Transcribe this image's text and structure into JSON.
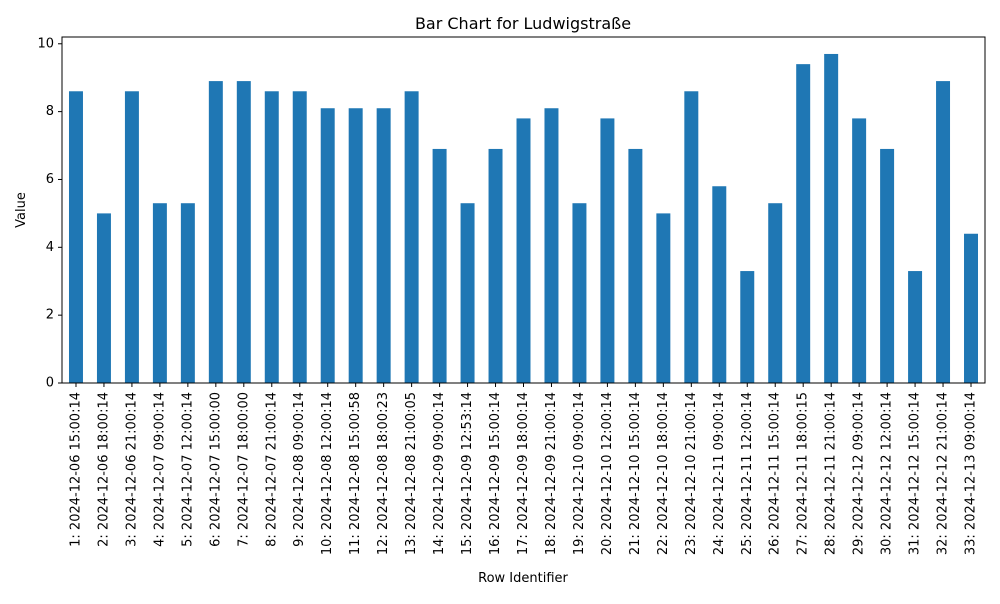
{
  "chart_data": {
    "type": "bar",
    "title": "Bar Chart for Ludwigstraße",
    "xlabel": "Row Identifier",
    "ylabel": "Value",
    "ylim": [
      0,
      10.2
    ],
    "yticks": [
      0,
      2,
      4,
      6,
      8,
      10
    ],
    "grid": false,
    "bar_color": "#1f77b4",
    "categories": [
      "1: 2024-12-06 15:00:14",
      "2: 2024-12-06 18:00:14",
      "3: 2024-12-06 21:00:14",
      "4: 2024-12-07 09:00:14",
      "5: 2024-12-07 12:00:14",
      "6: 2024-12-07 15:00:00",
      "7: 2024-12-07 18:00:00",
      "8: 2024-12-07 21:00:14",
      "9: 2024-12-08 09:00:14",
      "10: 2024-12-08 12:00:14",
      "11: 2024-12-08 15:00:58",
      "12: 2024-12-08 18:00:23",
      "13: 2024-12-08 21:00:05",
      "14: 2024-12-09 09:00:14",
      "15: 2024-12-09 12:53:14",
      "16: 2024-12-09 15:00:14",
      "17: 2024-12-09 18:00:14",
      "18: 2024-12-09 21:00:14",
      "19: 2024-12-10 09:00:14",
      "20: 2024-12-10 12:00:14",
      "21: 2024-12-10 15:00:14",
      "22: 2024-12-10 18:00:14",
      "23: 2024-12-10 21:00:14",
      "24: 2024-12-11 09:00:14",
      "25: 2024-12-11 12:00:14",
      "26: 2024-12-11 15:00:14",
      "27: 2024-12-11 18:00:15",
      "28: 2024-12-11 21:00:14",
      "29: 2024-12-12 09:00:14",
      "30: 2024-12-12 12:00:14",
      "31: 2024-12-12 15:00:14",
      "32: 2024-12-12 21:00:14",
      "33: 2024-12-13 09:00:14"
    ],
    "values": [
      8.6,
      5.0,
      8.6,
      5.3,
      5.3,
      8.9,
      8.9,
      8.6,
      8.6,
      8.1,
      8.1,
      8.1,
      8.6,
      6.9,
      5.3,
      6.9,
      7.8,
      8.1,
      5.3,
      7.8,
      6.9,
      5.0,
      8.6,
      5.8,
      3.3,
      5.3,
      9.4,
      9.7,
      7.8,
      6.9,
      3.3,
      8.9,
      4.4
    ]
  }
}
